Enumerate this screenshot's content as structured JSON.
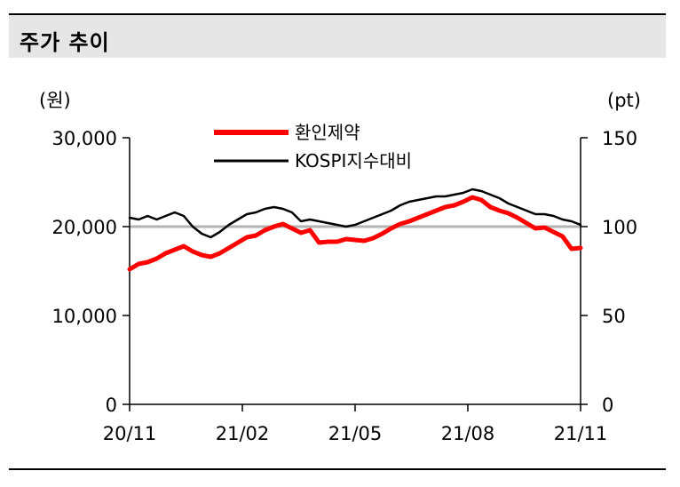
{
  "title": "주가 추이",
  "chart_data": {
    "type": "line",
    "title": "",
    "left_unit": "(원)",
    "right_unit": "(pt)",
    "x_tick_labels": [
      "20/11",
      "21/02",
      "21/05",
      "21/08",
      "21/11"
    ],
    "y_left": {
      "ylim": [
        0,
        30000
      ],
      "ticks": [
        0,
        10000,
        20000,
        30000
      ],
      "tick_labels": [
        "0",
        "10,000",
        "20,000",
        "30,000"
      ]
    },
    "y_right": {
      "ylim": [
        0,
        150
      ],
      "ticks": [
        0,
        50,
        100,
        150
      ],
      "tick_labels": [
        "0",
        "50",
        "100",
        "150"
      ]
    },
    "reference_line": {
      "axis": "right",
      "value": 100,
      "color": "#b3b3b3"
    },
    "legend_position": "top-center",
    "series": [
      {
        "name": "환인제약",
        "axis": "left",
        "color": "#ff0000",
        "t": [
          0,
          2,
          4,
          6,
          8,
          10,
          12,
          14,
          16,
          18,
          20,
          22,
          24,
          26,
          28,
          30,
          32,
          34,
          36,
          38,
          40,
          42,
          44,
          46,
          48,
          50,
          52,
          54,
          56,
          58,
          60,
          62,
          64,
          66,
          68,
          70,
          72,
          74,
          76,
          78,
          80,
          82,
          84,
          86,
          88,
          90,
          92,
          94,
          96,
          98,
          100
        ],
        "values": [
          15200,
          15800,
          16000,
          16400,
          17000,
          17400,
          17800,
          17200,
          16800,
          16600,
          17000,
          17600,
          18200,
          18800,
          19000,
          19600,
          20000,
          20300,
          19800,
          19300,
          19600,
          18200,
          18300,
          18300,
          18600,
          18500,
          18400,
          18700,
          19200,
          19800,
          20300,
          20600,
          21000,
          21400,
          21800,
          22200,
          22400,
          22800,
          23300,
          23000,
          22200,
          21800,
          21500,
          21000,
          20400,
          19800,
          19900,
          19400,
          18900,
          17500,
          17600
        ]
      },
      {
        "name": "KOSPI지수대비",
        "axis": "right",
        "color": "#000000",
        "t": [
          0,
          2,
          4,
          6,
          8,
          10,
          12,
          14,
          16,
          18,
          20,
          22,
          24,
          26,
          28,
          30,
          32,
          34,
          36,
          38,
          40,
          42,
          44,
          46,
          48,
          50,
          52,
          54,
          56,
          58,
          60,
          62,
          64,
          66,
          68,
          70,
          72,
          74,
          76,
          78,
          80,
          82,
          84,
          86,
          88,
          90,
          92,
          94,
          96,
          98,
          100
        ],
        "values": [
          105,
          104,
          106,
          104,
          106,
          108,
          106,
          100,
          96,
          94,
          97,
          101,
          104,
          107,
          108,
          110,
          111,
          110,
          108,
          103,
          104,
          103,
          102,
          101,
          100,
          101,
          103,
          105,
          107,
          109,
          112,
          114,
          115,
          116,
          117,
          117,
          118,
          119,
          121,
          120,
          118,
          116,
          113,
          111,
          109,
          107,
          107,
          106,
          104,
          103,
          101
        ]
      }
    ]
  }
}
